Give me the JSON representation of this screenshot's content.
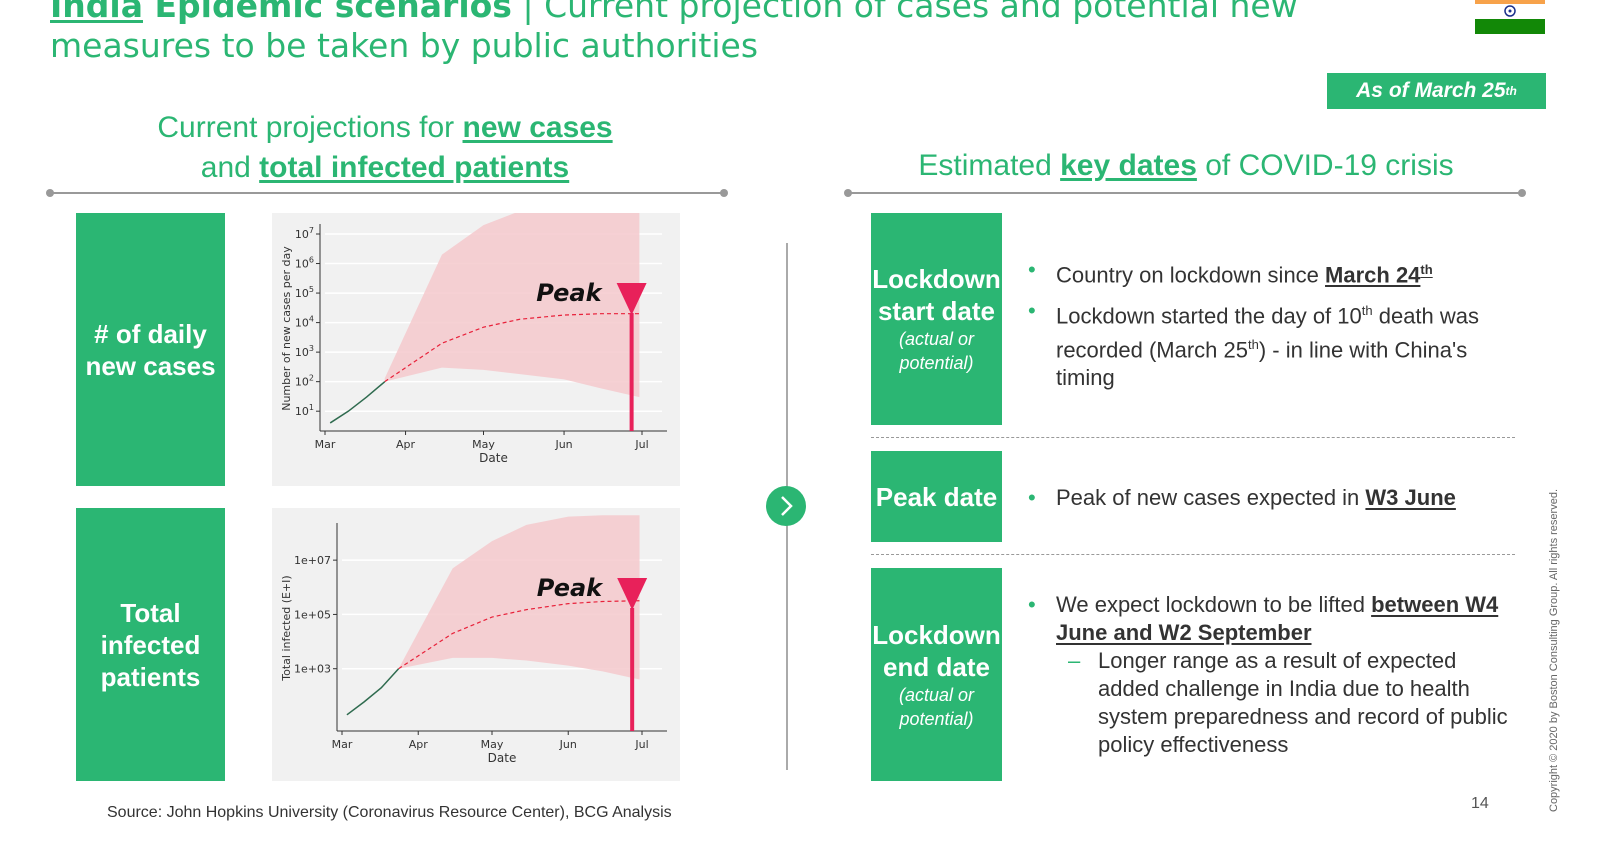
{
  "header": {
    "title_country": "India",
    "title_bold_rest": " Epidemic scenarios",
    "title_sep": " | ",
    "title_rest": "Current projection of cases and potential new",
    "title_line2": "measures to be taken by public authorities",
    "as_of_text": "As of March 25",
    "as_of_sup": "th"
  },
  "left": {
    "title_line1_pre": "Current projections for ",
    "title_line1_em": "new cases",
    "title_line2_pre": "and ",
    "title_line2_em": "total infected patients",
    "box1": "# of daily new cases",
    "box2": "Total infected patients"
  },
  "right": {
    "title_pre": "Estimated ",
    "title_em": "key dates",
    "title_post": " of COVID-19 crisis",
    "rows": [
      {
        "label_main": "Lockdown start date",
        "label_sub": "(actual or potential)",
        "b1_pre": "Country on lockdown since ",
        "b1_em": "March 24",
        "b1_sup": "th",
        "b2_a": "Lockdown started the day of 10",
        "b2_sup1": "th",
        "b2_b": " death was recorded (March 25",
        "b2_sup2": "th",
        "b2_c": ") - in line with China's timing"
      },
      {
        "label_main": "Peak date",
        "b1_pre": "Peak of new cases expected in ",
        "b1_em": "W3 June"
      },
      {
        "label_main": "Lockdown end date",
        "label_sub": "(actual or potential)",
        "b1_pre": "We expect lockdown to be lifted ",
        "b1_em": "between W4 June and W2 September",
        "sub1": "Longer range as a result of expected added challenge in India due to health system preparedness and record of public policy effectiveness"
      }
    ]
  },
  "footer": {
    "source": "Source: John Hopkins University (Coronavirus Resource Center), BCG Analysis",
    "page": "14",
    "copyright": "Copyright © 2020 by Boston Consulting Group. All rights reserved."
  },
  "colors": {
    "accent": "#2bb673",
    "band": "#f4c9cd",
    "peak": "#e8215a",
    "dash": "#e8213a",
    "history": "#2f6b4f"
  },
  "chart_data": [
    {
      "type": "area",
      "xlabel": "Date",
      "ylabel": "Number of new cases per day",
      "x_ticks": [
        "Mar",
        "Apr",
        "May",
        "Jun",
        "Jul"
      ],
      "y_scale": "log",
      "y_ticks": [
        "10^1",
        "10^2",
        "10^3",
        "10^4",
        "10^5",
        "10^6",
        "10^7"
      ],
      "annotation": "Peak",
      "peak_date": "late Jun",
      "series": [
        {
          "x": [
            "Mar 3",
            "Mar 10",
            "Mar 17",
            "Mar 24"
          ],
          "values": [
            4,
            10,
            30,
            100
          ]
        },
        {
          "x": [
            "Mar 24",
            "Apr 15",
            "May 1",
            "May 15",
            "Jun 1",
            "Jun 15",
            "Jun 30"
          ],
          "values": [
            100,
            2000,
            7000,
            13000,
            18000,
            20000,
            20000
          ]
        },
        {
          "x": [
            "Mar 24",
            "Apr 15",
            "May 1",
            "May 15",
            "Jun 1",
            "Jun 15",
            "Jun 30"
          ],
          "values": [
            130,
            2000000,
            20000000,
            60000000,
            90000000,
            90000000,
            80000000
          ]
        },
        {
          "x": [
            "Mar 24",
            "Apr 15",
            "May 1",
            "May 15",
            "Jun 1",
            "Jun 15",
            "Jun 30"
          ],
          "values": [
            100,
            300,
            250,
            180,
            120,
            60,
            30
          ]
        }
      ]
    },
    {
      "type": "area",
      "xlabel": "Date",
      "ylabel": "Total infected (E+I)",
      "x_ticks": [
        "Mar",
        "Apr",
        "May",
        "Jun",
        "Jul"
      ],
      "y_scale": "log",
      "y_ticks": [
        "1e+03",
        "1e+05",
        "1e+07"
      ],
      "annotation": "Peak",
      "peak_date": "late Jun",
      "series": [
        {
          "x": [
            "Mar 3",
            "Mar 10",
            "Mar 17",
            "Mar 24"
          ],
          "values": [
            20,
            60,
            200,
            1000
          ]
        },
        {
          "x": [
            "Mar 24",
            "Apr 15",
            "May 1",
            "May 15",
            "Jun 1",
            "Jun 15",
            "Jun 30"
          ],
          "values": [
            1000,
            20000,
            80000,
            150000,
            250000,
            300000,
            320000
          ]
        },
        {
          "x": [
            "Mar 24",
            "Apr 15",
            "May 1",
            "May 15",
            "Jun 1",
            "Jun 15",
            "Jun 30"
          ],
          "values": [
            1000,
            5000000,
            50000000,
            200000000,
            400000000,
            450000000,
            450000000
          ]
        },
        {
          "x": [
            "Mar 24",
            "Apr 15",
            "May 1",
            "May 15",
            "Jun 1",
            "Jun 15",
            "Jun 30"
          ],
          "values": [
            1000,
            2500,
            2500,
            2000,
            1300,
            800,
            400
          ]
        }
      ]
    }
  ]
}
